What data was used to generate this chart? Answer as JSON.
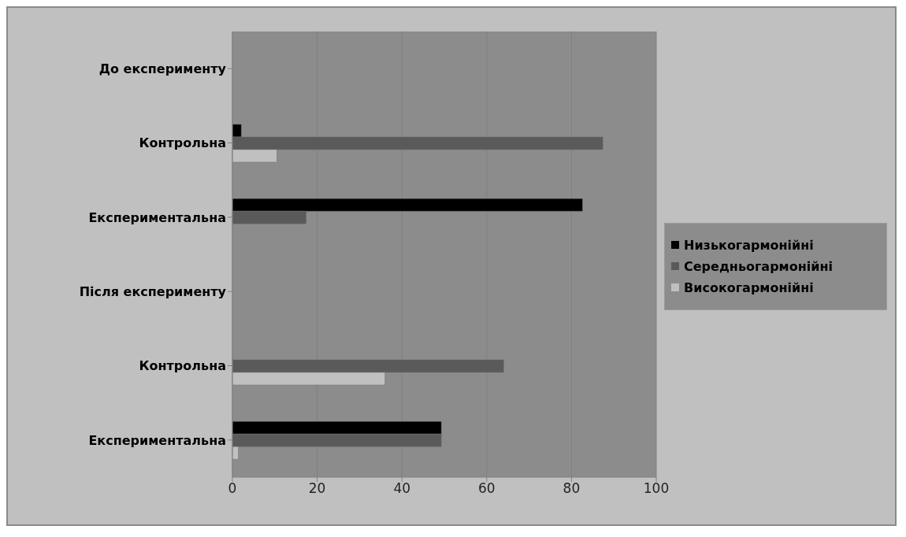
{
  "chart_data": {
    "type": "bar",
    "orientation": "horizontal",
    "categories": [
      "До експерименту",
      "Контрольна",
      "Експериментальна",
      "Після експерименту",
      "Контрольна",
      "Експериментальна"
    ],
    "series": [
      {
        "name": "Низькогармонійні",
        "color": "#000000",
        "values": [
          null,
          2.1,
          82.6,
          null,
          null,
          49.3
        ]
      },
      {
        "name": "Середньогармонійні",
        "color": "#5a5a5a",
        "values": [
          null,
          87.4,
          17.4,
          null,
          64,
          49.3
        ]
      },
      {
        "name": "Високогармонійні",
        "color": "#c0c0c0",
        "values": [
          null,
          10.5,
          null,
          null,
          36,
          1.4
        ]
      }
    ],
    "xlim": [
      0,
      100
    ],
    "xticks": [
      0,
      20,
      40,
      60,
      80,
      100
    ],
    "grid": "x",
    "legend": "right"
  }
}
